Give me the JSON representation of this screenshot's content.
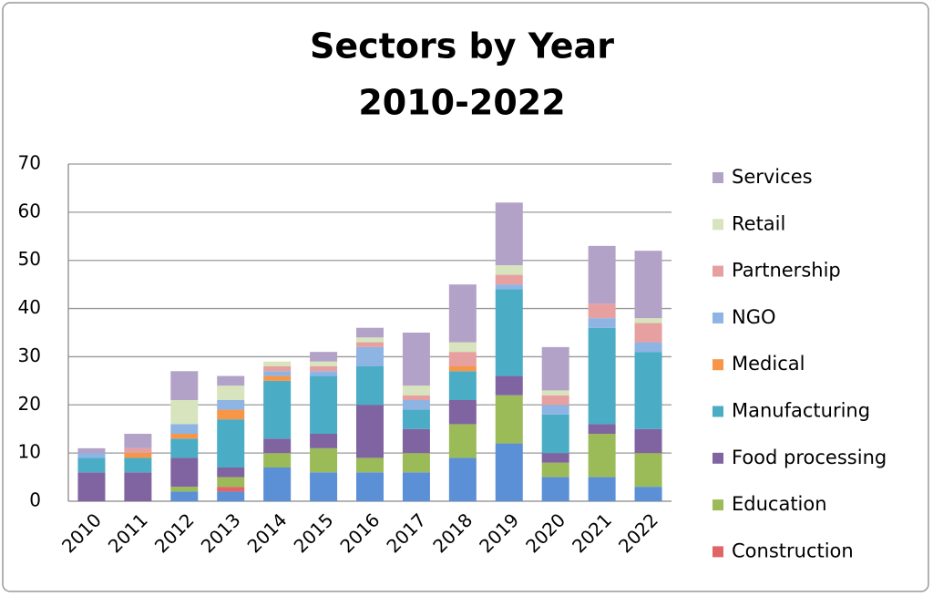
{
  "chart_data": {
    "type": "stacked_bar",
    "title": [
      "Sectors by Year",
      "2010-2022"
    ],
    "categories": [
      "2010",
      "2011",
      "2012",
      "2013",
      "2014",
      "2015",
      "2016",
      "2017",
      "2018",
      "2019",
      "2020",
      "2021",
      "2022"
    ],
    "series": [
      {
        "name": null,
        "color": "#5b8fd6",
        "values": [
          0,
          0,
          2,
          2,
          7,
          6,
          6,
          6,
          9,
          12,
          5,
          5,
          3
        ]
      },
      {
        "name": "Construction",
        "color": "#e06666",
        "values": [
          0,
          0,
          0,
          1,
          0,
          0,
          0,
          0,
          0,
          0,
          0,
          0,
          0
        ]
      },
      {
        "name": "Education",
        "color": "#9bbb59",
        "values": [
          0,
          0,
          1,
          2,
          3,
          5,
          3,
          4,
          7,
          10,
          3,
          9,
          7
        ]
      },
      {
        "name": "Food processing",
        "color": "#8064a2",
        "values": [
          6,
          6,
          6,
          2,
          3,
          3,
          11,
          5,
          5,
          4,
          2,
          2,
          5
        ]
      },
      {
        "name": "Manufacturing",
        "color": "#4bacc6",
        "values": [
          3,
          3,
          4,
          10,
          12,
          12,
          8,
          4,
          6,
          18,
          8,
          20,
          16
        ]
      },
      {
        "name": "Medical",
        "color": "#f79646",
        "values": [
          0,
          1,
          1,
          2,
          1,
          0,
          0,
          0,
          1,
          0,
          0,
          0,
          0
        ]
      },
      {
        "name": "NGO",
        "color": "#8eb4e3",
        "values": [
          1,
          0,
          2,
          2,
          1,
          1,
          4,
          2,
          0,
          1,
          2,
          2,
          2
        ]
      },
      {
        "name": "Partnership",
        "color": "#e6a0a0",
        "values": [
          0,
          1,
          0,
          0,
          1,
          1,
          1,
          1,
          3,
          2,
          2,
          3,
          4
        ]
      },
      {
        "name": "Retail",
        "color": "#d7e4bd",
        "values": [
          0,
          0,
          5,
          3,
          1,
          1,
          1,
          2,
          2,
          2,
          1,
          0,
          1
        ]
      },
      {
        "name": "Services",
        "color": "#b3a2c7",
        "values": [
          1,
          3,
          6,
          2,
          0,
          2,
          2,
          11,
          12,
          13,
          9,
          12,
          14
        ]
      }
    ],
    "ylim": [
      0,
      70
    ],
    "yticks": [
      0,
      10,
      20,
      30,
      40,
      50,
      60,
      70
    ],
    "grid": true,
    "legend": "right"
  }
}
